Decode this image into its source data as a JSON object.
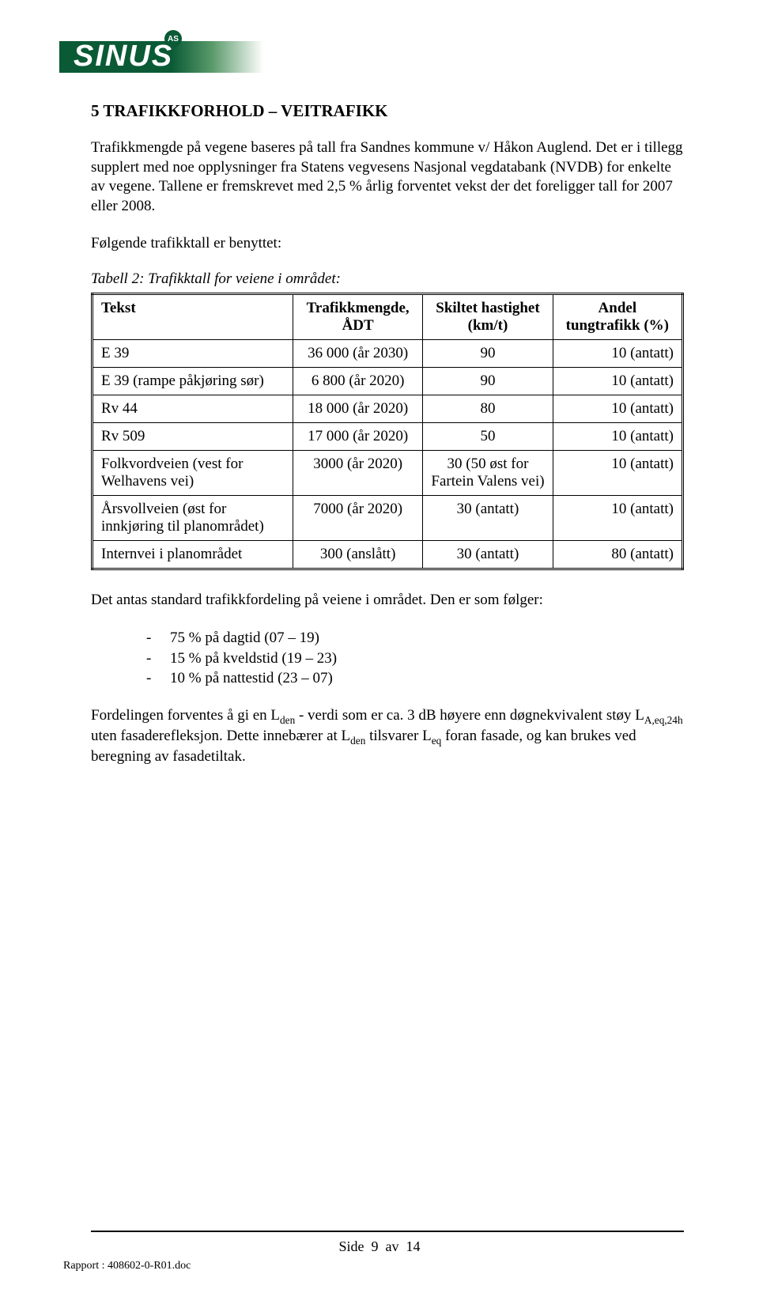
{
  "logo": {
    "text": "SINUS",
    "cap": "AS"
  },
  "heading": "5   TRAFIKKFORHOLD – VEITRAFIKK",
  "para1": "Trafikkmengde på vegene baseres på tall fra Sandnes kommune v/ Håkon Auglend. Det er i tillegg supplert med noe opplysninger fra Statens vegvesens Nasjonal vegdatabank (NVDB) for enkelte av vegene. Tallene er fremskrevet med 2,5 % årlig forventet vekst der det foreligger tall for 2007 eller 2008.",
  "para2": "Følgende trafikktall er benyttet:",
  "table_caption": "Tabell 2: Trafikktall for veiene i området:",
  "table": {
    "headers": {
      "tekst": "Tekst",
      "adt": "Trafikkmengde, ÅDT",
      "speed": "Skiltet hastighet (km/t)",
      "heavy": "Andel tungtrafikk (%)"
    },
    "rows": [
      {
        "tekst": "E 39",
        "adt": "36 000 (år 2030)",
        "speed": "90",
        "heavy": "10 (antatt)"
      },
      {
        "tekst": "E 39 (rampe påkjøring sør)",
        "adt": "6 800 (år 2020)",
        "speed": "90",
        "heavy": "10 (antatt)"
      },
      {
        "tekst": "Rv 44",
        "adt": "18 000 (år 2020)",
        "speed": "80",
        "heavy": "10 (antatt)"
      },
      {
        "tekst": "Rv 509",
        "adt": "17 000 (år 2020)",
        "speed": "50",
        "heavy": "10 (antatt)"
      },
      {
        "tekst": "Folkvordveien (vest for Welhavens vei)",
        "adt": "3000 (år 2020)",
        "speed": "30 (50 øst for Fartein Valens vei)",
        "heavy": "10 (antatt)"
      },
      {
        "tekst": "Årsvollveien (øst for innkjøring til planområdet)",
        "adt": "7000 (år 2020)",
        "speed": "30 (antatt)",
        "heavy": "10 (antatt)"
      },
      {
        "tekst": "Internvei i planområdet",
        "adt": "300 (anslått)",
        "speed": "30 (antatt)",
        "heavy": "80 (antatt)"
      }
    ]
  },
  "para3": "Det antas standard trafikkfordeling på veiene i området. Den er som følger:",
  "bullets": [
    "75 % på dagtid (07 – 19)",
    "15 % på kveldstid (19 – 23)",
    "10 % på nattestid (23 – 07)"
  ],
  "para4_pre": "Fordelingen forventes å gi en L",
  "para4_sub1": "den",
  "para4_mid1": " - verdi som er ca. 3 dB høyere enn døgnekvivalent støy L",
  "para4_sub2": "A,eq,24h",
  "para4_mid2": " uten fasaderefleksjon. Dette innebærer at L",
  "para4_sub3": "den",
  "para4_mid3": " tilsvarer L",
  "para4_sub4": "eq",
  "para4_end": " foran fasade, og kan brukes ved beregning av fasadetiltak.",
  "footer": {
    "side_label": "Side",
    "page_current": "9",
    "av_label": "av",
    "page_total": "14",
    "report": "Rapport :  408602-0-R01.doc"
  }
}
